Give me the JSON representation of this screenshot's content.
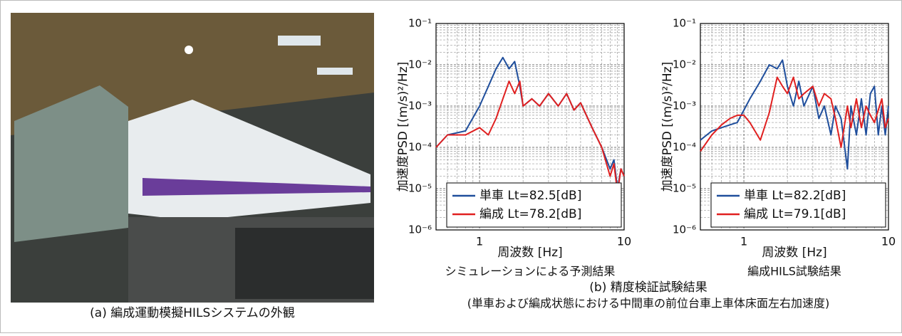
{
  "photo_caption": "(a) 編成運動模擬HILSシステムの外観",
  "figure_caption": "(b) 精度検証試験結果",
  "figure_subcaption": "(単車および編成状態における中間車の前位台車上車体床面左右加速度)",
  "chart_data": [
    {
      "type": "line",
      "subtitle": "シミュレーションによる予測結果",
      "x_label": "周波数 [Hz]",
      "y_label": "加速度PSD [(m/s)²/Hz]",
      "x_scale": "log",
      "y_scale": "log",
      "grid": true,
      "legend": "lower right",
      "xlim": [
        0.5,
        10
      ],
      "xticks": [
        1,
        10
      ],
      "ylim": [
        1e-06,
        0.1
      ],
      "yticks": [
        {
          "value": 1e-06,
          "label": "10⁻⁶"
        },
        {
          "value": 1e-05,
          "label": "10⁻⁵"
        },
        {
          "value": 0.0001,
          "label": "10⁻⁴"
        },
        {
          "value": 0.001,
          "label": "10⁻³"
        },
        {
          "value": 0.01,
          "label": "10⁻²"
        },
        {
          "value": 0.1,
          "label": "10⁻¹"
        }
      ],
      "x": [
        0.5,
        0.6,
        0.8,
        1.0,
        1.15,
        1.3,
        1.45,
        1.6,
        1.75,
        1.9,
        2.0,
        2.3,
        2.6,
        3,
        3.5,
        4,
        4.5,
        5,
        6,
        7,
        8,
        8.5,
        9,
        9.5,
        10
      ],
      "series": [
        {
          "name": "単車 Lt=82.5[dB]",
          "color": "#1f4e9c",
          "values": [
            0.0001,
            0.0002,
            0.00025,
            0.001,
            0.003,
            0.008,
            0.015,
            0.008,
            0.012,
            0.003,
            0.001,
            0.0015,
            0.001,
            0.002,
            0.001,
            0.002,
            0.0008,
            0.0012,
            0.0003,
            0.0001,
            3e-05,
            5e-05,
            1e-05,
            3e-05,
            2e-05
          ]
        },
        {
          "name": "編成 Lt=78.2[dB]",
          "color": "#e02020",
          "values": [
            0.0001,
            0.0002,
            0.0002,
            0.0003,
            0.0002,
            0.0005,
            0.0015,
            0.004,
            0.002,
            0.004,
            0.001,
            0.0015,
            0.001,
            0.002,
            0.001,
            0.002,
            0.0008,
            0.0012,
            0.0003,
            0.0001,
            2e-05,
            4e-05,
            8e-06,
            3e-05,
            2e-05
          ]
        }
      ]
    },
    {
      "type": "line",
      "subtitle": "編成HILS試験結果",
      "x_label": "周波数 [Hz]",
      "y_label": "加速度PSD [(m/s)²/Hz]",
      "x_scale": "log",
      "y_scale": "log",
      "grid": true,
      "legend": "lower right",
      "xlim": [
        0.5,
        10
      ],
      "xticks": [
        1,
        10
      ],
      "ylim": [
        1e-06,
        0.1
      ],
      "yticks": [
        {
          "value": 1e-06,
          "label": "10⁻⁶"
        },
        {
          "value": 1e-05,
          "label": "10⁻⁵"
        },
        {
          "value": 0.0001,
          "label": "10⁻⁴"
        },
        {
          "value": 0.001,
          "label": "10⁻³"
        },
        {
          "value": 0.01,
          "label": "10⁻²"
        },
        {
          "value": 0.1,
          "label": "10⁻¹"
        }
      ],
      "x": [
        0.5,
        0.6,
        0.7,
        0.8,
        0.9,
        1.0,
        1.1,
        1.3,
        1.5,
        1.7,
        1.85,
        2.0,
        2.2,
        2.4,
        2.6,
        3,
        3.3,
        3.6,
        4,
        4.3,
        4.7,
        5.2,
        5.5,
        6,
        6.5,
        7,
        7.5,
        8,
        8.5,
        9,
        9.5,
        10
      ],
      "series": [
        {
          "name": "単車 Lt=82.2[dB]",
          "color": "#1f4e9c",
          "values": [
            0.00015,
            0.00025,
            0.0003,
            0.00035,
            0.0004,
            0.0008,
            0.0015,
            0.004,
            0.01,
            0.008,
            0.013,
            0.003,
            0.001,
            0.004,
            0.001,
            0.003,
            0.0005,
            0.001,
            0.0002,
            0.001,
            0.0005,
            3e-05,
            0.001,
            0.0002,
            0.0015,
            0.0002,
            0.002,
            0.003,
            0.0002,
            0.001,
            0.0002,
            0.001
          ]
        },
        {
          "name": "編成 Lt=79.1[dB]",
          "color": "#e02020",
          "values": [
            8e-05,
            0.0002,
            0.00035,
            0.0005,
            0.0006,
            0.0006,
            0.0004,
            0.00015,
            0.0007,
            0.005,
            0.003,
            0.002,
            0.005,
            0.0015,
            0.002,
            0.003,
            0.001,
            0.002,
            0.0015,
            0.0005,
            0.0001,
            0.001,
            0.0003,
            0.0015,
            0.0003,
            0.001,
            0.0006,
            0.0004,
            0.0008,
            0.0015,
            0.0003,
            0.0005
          ]
        }
      ]
    }
  ]
}
